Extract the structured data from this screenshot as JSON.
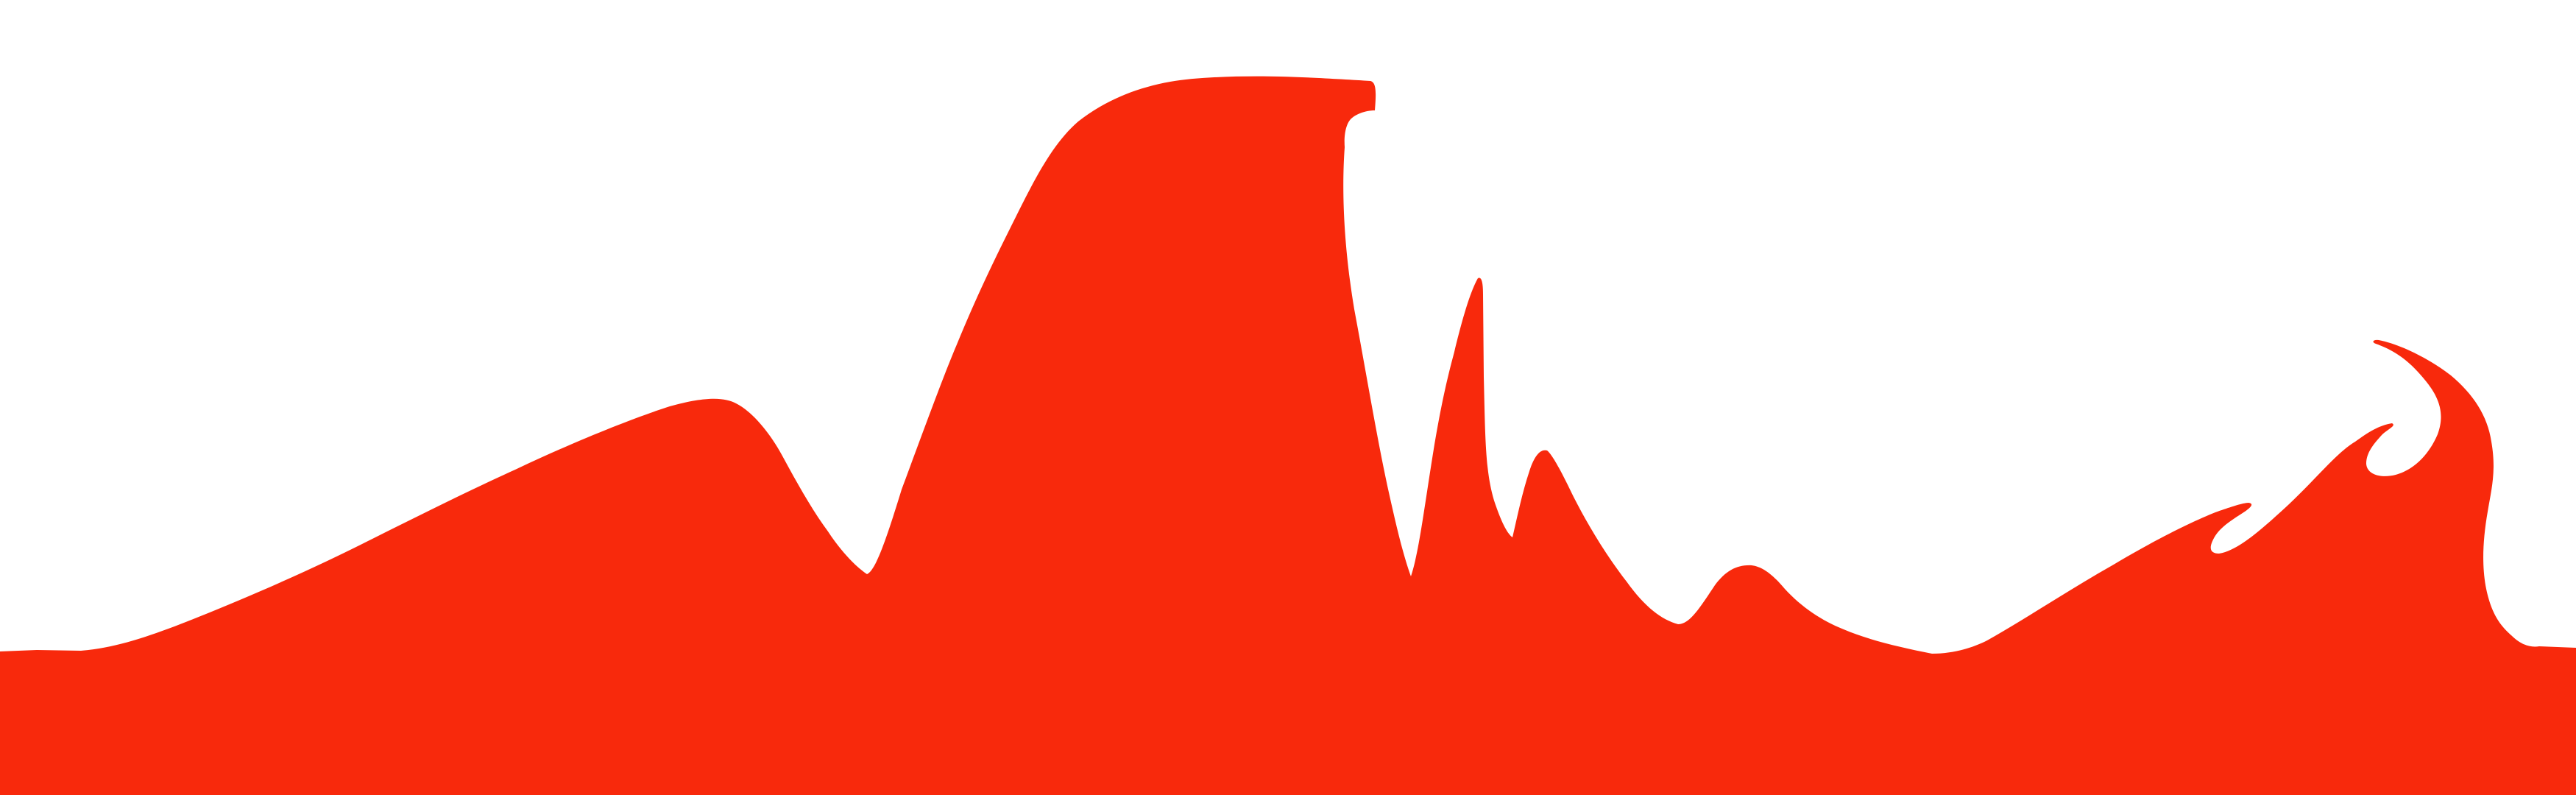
{
  "scene": {
    "background_color": "#ffffff",
    "shape_color": "#f8290c",
    "shape_description_icon": "red-wave-silhouette-icon"
  }
}
